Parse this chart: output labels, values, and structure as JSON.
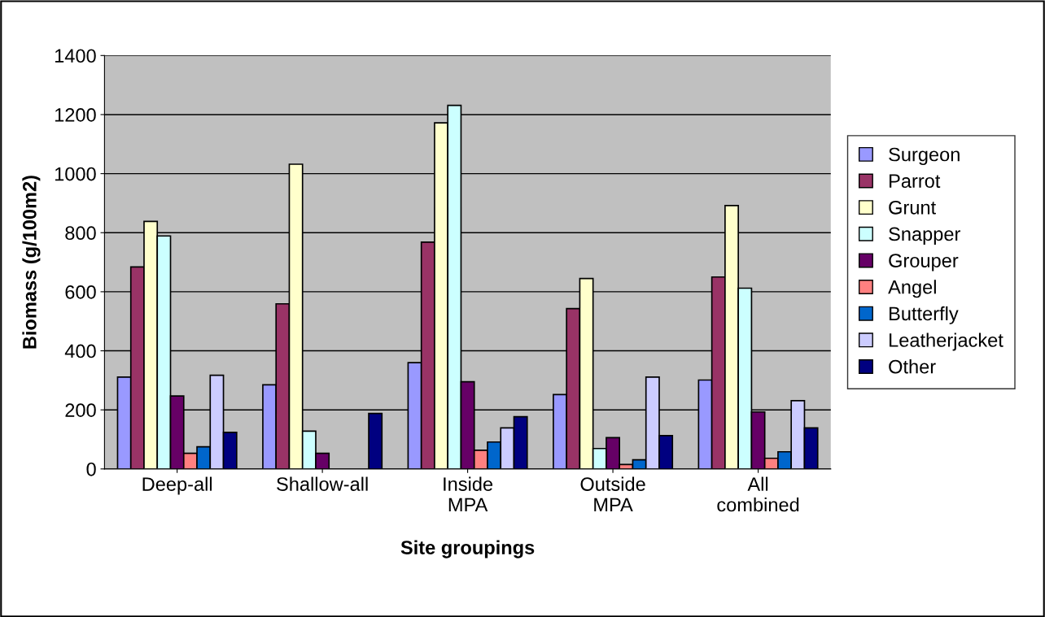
{
  "chart_data": {
    "type": "bar",
    "xlabel": "Site groupings",
    "ylabel": "Biomass (g/100m2)",
    "categories": [
      "Deep-all",
      "Shallow-all",
      "Inside\nMPA",
      "Outside\nMPA",
      "All\ncombined"
    ],
    "series": [
      {
        "name": "Surgeon",
        "color": "#9999ff",
        "values": [
          311,
          285,
          360,
          252,
          301
        ]
      },
      {
        "name": "Parrot",
        "color": "#993366",
        "values": [
          684,
          559,
          768,
          543,
          650
        ]
      },
      {
        "name": "Grunt",
        "color": "#ffffcc",
        "values": [
          838,
          1032,
          1172,
          645,
          892
        ]
      },
      {
        "name": "Snapper",
        "color": "#ccffff",
        "values": [
          789,
          128,
          1231,
          69,
          612
        ]
      },
      {
        "name": "Grouper",
        "color": "#660066",
        "values": [
          247,
          53,
          295,
          106,
          193
        ]
      },
      {
        "name": "Angel",
        "color": "#ff8080",
        "values": [
          53,
          null,
          63,
          15,
          36
        ]
      },
      {
        "name": "Butterfly",
        "color": "#0066cc",
        "values": [
          75,
          null,
          91,
          31,
          58
        ]
      },
      {
        "name": "Leatherjacket",
        "color": "#ccccff",
        "values": [
          317,
          null,
          139,
          311,
          231
        ]
      },
      {
        "name": "Other",
        "color": "#000080",
        "values": [
          124,
          188,
          177,
          113,
          139
        ]
      }
    ],
    "ylim": [
      0,
      1400
    ],
    "yticks": [
      0,
      200,
      400,
      600,
      800,
      1000,
      1200,
      1400
    ],
    "grid": "y",
    "legend": "right"
  }
}
